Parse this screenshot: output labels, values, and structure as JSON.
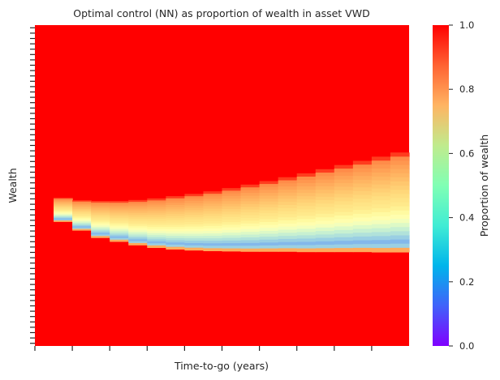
{
  "chart_data": {
    "type": "heatmap",
    "title": "Optimal control (NN) as proportion of wealth in asset VWD",
    "xlabel": "Time-to-go (years)",
    "ylabel": "Wealth",
    "colorbar": {
      "label": "Proportion of wealth",
      "min": 0.0,
      "max": 1.0,
      "ticks": [
        "0.0",
        "0.2",
        "0.4",
        "0.6",
        "0.8",
        "1.0"
      ],
      "colormap": "rainbow"
    },
    "default_value": 1.0,
    "columns": 20,
    "x_major_tick_count": 10,
    "y_tick_count": 60,
    "x_tick_labels_shown": false,
    "y_tick_labels_shown": false,
    "description_of_pattern_as_data": {
      "control_columns": [
        1,
        2,
        3,
        4,
        5,
        6,
        7,
        8,
        9,
        10,
        11,
        12,
        13,
        14,
        15,
        16,
        17,
        18,
        19
      ],
      "band_top_fraction": [
        0.538,
        0.546,
        0.548,
        0.548,
        0.545,
        0.54,
        0.533,
        0.526,
        0.518,
        0.508,
        0.497,
        0.486,
        0.474,
        0.462,
        0.449,
        0.436,
        0.423,
        0.41,
        0.397
      ],
      "band_bottom_fraction": [
        0.612,
        0.639,
        0.662,
        0.674,
        0.685,
        0.693,
        0.698,
        0.701,
        0.703,
        0.704,
        0.705,
        0.705,
        0.705,
        0.706,
        0.706,
        0.706,
        0.706,
        0.707,
        0.707
      ],
      "top_value": 0.82,
      "min_value": 0.22
    }
  }
}
